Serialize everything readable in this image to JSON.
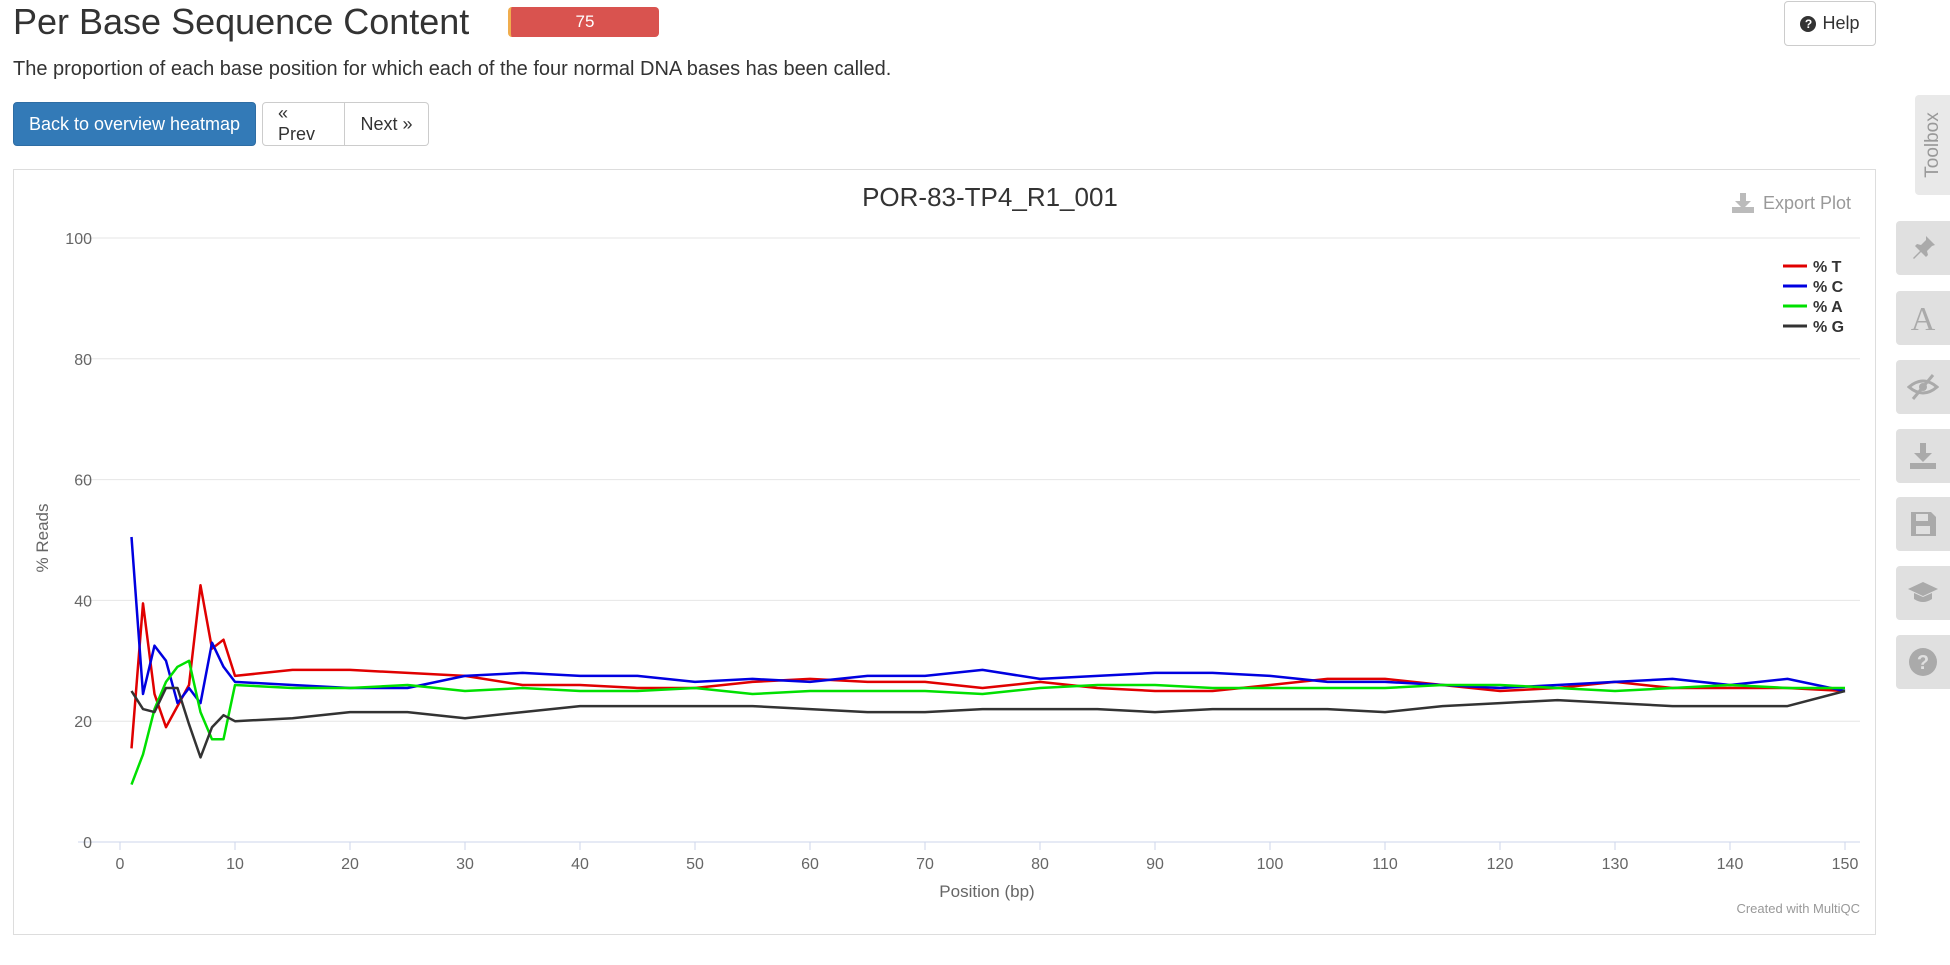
{
  "header": {
    "title": "Per Base Sequence Content",
    "status_value": "75",
    "help_label": "Help",
    "description": "The proportion of each base position for which each of the four normal DNA bases has been called."
  },
  "nav": {
    "back_label": "Back to overview heatmap",
    "prev_label": "« Prev",
    "next_label": "Next »"
  },
  "plot": {
    "export_label": "Export Plot",
    "credit": "Created with MultiQC"
  },
  "toolbox": {
    "label": "Toolbox",
    "icons": [
      "pin-icon",
      "font-icon",
      "eye-slash-icon",
      "download-icon",
      "save-icon",
      "graduation-cap-icon",
      "question-icon"
    ]
  },
  "colors": {
    "accent": "#337ab7",
    "status": "#d9534f"
  },
  "chart_data": {
    "type": "line",
    "title": "POR-83-TP4_R1_001",
    "xlabel": "Position (bp)",
    "ylabel": "% Reads",
    "xlim": [
      0,
      150
    ],
    "ylim": [
      0,
      100
    ],
    "xticks": [
      0,
      10,
      20,
      30,
      40,
      50,
      60,
      70,
      80,
      90,
      100,
      110,
      120,
      130,
      140,
      150
    ],
    "yticks": [
      0,
      20,
      40,
      60,
      80,
      100
    ],
    "grid": true,
    "legend_position": "top-right",
    "x": [
      1,
      2,
      3,
      4,
      5,
      6,
      7,
      8,
      9,
      10,
      15,
      20,
      25,
      30,
      35,
      40,
      45,
      50,
      55,
      60,
      65,
      70,
      75,
      80,
      85,
      90,
      95,
      100,
      105,
      110,
      115,
      120,
      125,
      130,
      135,
      140,
      145,
      150
    ],
    "series": [
      {
        "name": "% T",
        "color": "#e00000",
        "values": [
          15.5,
          39.5,
          24.5,
          19,
          22.5,
          26,
          42.5,
          32,
          33.5,
          27.5,
          28.5,
          28.5,
          28,
          27.5,
          26,
          26,
          25.5,
          25.5,
          26.5,
          27,
          26.5,
          26.5,
          25.5,
          26.5,
          25.5,
          25,
          25,
          26,
          27,
          27,
          26,
          25,
          25.5,
          26.5,
          25.5,
          25.5,
          25.5,
          25
        ]
      },
      {
        "name": "% C",
        "color": "#0000e0",
        "values": [
          50.5,
          24.5,
          32.5,
          30,
          23,
          25.5,
          23,
          33,
          29,
          26.5,
          26,
          25.5,
          25.5,
          27.5,
          28,
          27.5,
          27.5,
          26.5,
          27,
          26.5,
          27.5,
          27.5,
          28.5,
          27,
          27.5,
          28,
          28,
          27.5,
          26.5,
          26.5,
          26,
          25.5,
          26,
          26.5,
          27,
          26,
          27,
          25
        ]
      },
      {
        "name": "% A",
        "color": "#00e000",
        "values": [
          9.5,
          14.5,
          22,
          26.5,
          29,
          30,
          21.5,
          17,
          17,
          26,
          25.5,
          25.5,
          26,
          25,
          25.5,
          25,
          25,
          25.5,
          24.5,
          25,
          25,
          25,
          24.5,
          25.5,
          26,
          26,
          25.5,
          25.5,
          25.5,
          25.5,
          26,
          26,
          25.5,
          25,
          25.5,
          26,
          25.5,
          25.5
        ]
      },
      {
        "name": "% G",
        "color": "#333333",
        "values": [
          25,
          22,
          21.5,
          25.5,
          25.5,
          19.5,
          14,
          19,
          21,
          20,
          20.5,
          21.5,
          21.5,
          20.5,
          21.5,
          22.5,
          22.5,
          22.5,
          22.5,
          22,
          21.5,
          21.5,
          22,
          22,
          22,
          21.5,
          22,
          22,
          22,
          21.5,
          22.5,
          23,
          23.5,
          23,
          22.5,
          22.5,
          22.5,
          25
        ]
      }
    ]
  }
}
